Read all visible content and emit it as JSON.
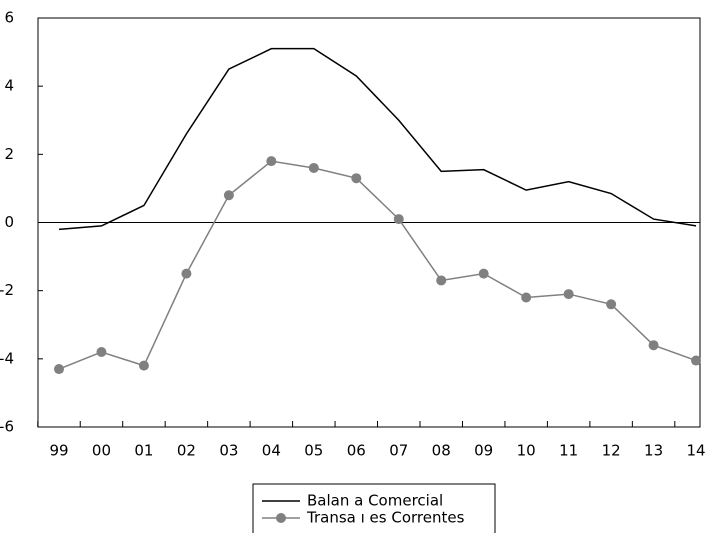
{
  "chart_data": {
    "type": "line",
    "categories": [
      "99",
      "00",
      "01",
      "02",
      "03",
      "04",
      "05",
      "06",
      "07",
      "08",
      "09",
      "10",
      "11",
      "12",
      "13",
      "14"
    ],
    "series": [
      {
        "name": "Balan a Comercial",
        "color": "#000000",
        "marker": null,
        "values": [
          -0.2,
          -0.1,
          0.5,
          2.6,
          4.5,
          5.1,
          5.1,
          4.3,
          3.0,
          1.5,
          1.55,
          0.95,
          1.2,
          0.85,
          0.1,
          -0.1
        ]
      },
      {
        "name": "Transa ı es Correntes",
        "color": "#808080",
        "marker": "circle",
        "values": [
          -4.3,
          -3.8,
          -4.2,
          -1.5,
          0.8,
          1.8,
          1.6,
          1.3,
          0.1,
          -1.7,
          -1.5,
          -2.2,
          -2.1,
          -2.4,
          -3.6,
          -4.05
        ]
      }
    ],
    "ylim": [
      -6,
      6
    ],
    "yticks": [
      -6,
      -4,
      -2,
      0,
      2,
      4,
      6
    ],
    "zero_line": true,
    "legend": "bottom"
  }
}
